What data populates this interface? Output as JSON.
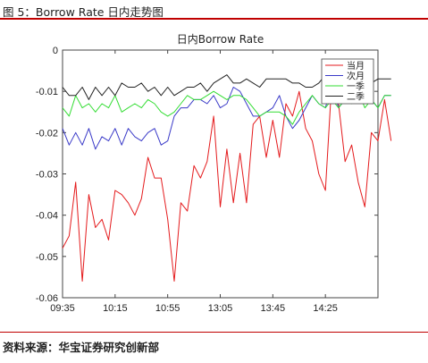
{
  "figure": {
    "caption": "图 5：Borrow Rate 日内走势图",
    "source": "资料来源：华宝证券研究创新部"
  },
  "chart_data": {
    "type": "line",
    "title": "日内Borrow Rate",
    "xlabel": "",
    "ylabel": "",
    "x_ticks": [
      "09:35",
      "10:15",
      "10:55",
      "13:05",
      "13:45",
      "14:25"
    ],
    "x_tick_index": [
      0,
      8,
      16,
      24,
      32,
      40
    ],
    "xlim": [
      0,
      48
    ],
    "ylim": [
      -0.06,
      0
    ],
    "y_ticks": [
      0,
      -0.01,
      -0.02,
      -0.03,
      -0.04,
      -0.05,
      -0.06
    ],
    "grid": false,
    "legend_position": "top-right",
    "series": [
      {
        "name": "当月",
        "color": "#e41a1c",
        "values": [
          -0.048,
          -0.045,
          -0.032,
          -0.056,
          -0.035,
          -0.043,
          -0.041,
          -0.046,
          -0.034,
          -0.035,
          -0.037,
          -0.04,
          -0.036,
          -0.026,
          -0.031,
          -0.031,
          -0.041,
          -0.056,
          -0.037,
          -0.039,
          -0.028,
          -0.031,
          -0.027,
          -0.016,
          -0.038,
          -0.024,
          -0.037,
          -0.025,
          -0.037,
          -0.018,
          -0.016,
          -0.026,
          -0.017,
          -0.026,
          -0.013,
          -0.016,
          -0.01,
          -0.019,
          -0.022,
          -0.03,
          -0.034,
          -0.007,
          -0.013,
          -0.027,
          -0.023,
          -0.032,
          -0.038,
          -0.02,
          -0.022,
          -0.012,
          -0.022
        ]
      },
      {
        "name": "次月",
        "color": "#3a3ac8",
        "values": [
          -0.019,
          -0.023,
          -0.02,
          -0.023,
          -0.019,
          -0.024,
          -0.021,
          -0.022,
          -0.019,
          -0.023,
          -0.019,
          -0.021,
          -0.022,
          -0.02,
          -0.019,
          -0.023,
          -0.022,
          -0.016,
          -0.014,
          -0.014,
          -0.012,
          -0.012,
          -0.013,
          -0.011,
          -0.014,
          -0.013,
          -0.009,
          -0.01,
          -0.013,
          -0.016,
          -0.016,
          -0.015,
          -0.014,
          -0.011,
          -0.016,
          -0.019,
          -0.017,
          -0.014,
          -0.011,
          -0.013,
          -0.014,
          -0.008,
          -0.014,
          -0.012,
          -0.012,
          -0.011,
          -0.013,
          -0.012,
          -0.014,
          -0.011,
          -0.011
        ]
      },
      {
        "name": "一季",
        "color": "#33dd33",
        "values": [
          -0.014,
          -0.016,
          -0.011,
          -0.014,
          -0.013,
          -0.015,
          -0.013,
          -0.014,
          -0.011,
          -0.015,
          -0.014,
          -0.013,
          -0.014,
          -0.012,
          -0.013,
          -0.015,
          -0.016,
          -0.015,
          -0.013,
          -0.011,
          -0.012,
          -0.012,
          -0.011,
          -0.01,
          -0.011,
          -0.012,
          -0.011,
          -0.011,
          -0.012,
          -0.014,
          -0.016,
          -0.015,
          -0.015,
          -0.015,
          -0.016,
          -0.018,
          -0.015,
          -0.013,
          -0.011,
          -0.013,
          -0.014,
          -0.012,
          -0.014,
          -0.012,
          -0.013,
          -0.01,
          -0.014,
          -0.012,
          -0.014,
          -0.011,
          -0.011
        ]
      },
      {
        "name": "二季",
        "color": "#222222",
        "values": [
          -0.009,
          -0.011,
          -0.011,
          -0.009,
          -0.012,
          -0.009,
          -0.011,
          -0.009,
          -0.011,
          -0.008,
          -0.009,
          -0.009,
          -0.008,
          -0.01,
          -0.009,
          -0.011,
          -0.009,
          -0.011,
          -0.01,
          -0.009,
          -0.009,
          -0.008,
          -0.01,
          -0.008,
          -0.007,
          -0.006,
          -0.008,
          -0.008,
          -0.007,
          -0.008,
          -0.009,
          -0.007,
          -0.007,
          -0.007,
          -0.007,
          -0.008,
          -0.008,
          -0.009,
          -0.009,
          -0.008,
          -0.006,
          -0.007,
          -0.008,
          -0.008,
          -0.008,
          -0.007,
          -0.007,
          -0.008,
          -0.007,
          -0.007,
          -0.007
        ]
      }
    ]
  }
}
